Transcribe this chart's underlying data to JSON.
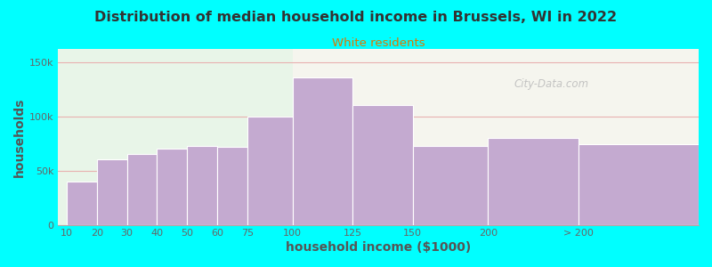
{
  "title": "Distribution of median household income in Brussels, WI in 2022",
  "subtitle": "White residents",
  "xlabel": "household income ($1000)",
  "ylabel": "households",
  "bar_labels": [
    "10",
    "20",
    "30",
    "40",
    "50",
    "60",
    "75",
    "100",
    "125",
    "150",
    "200",
    "> 200"
  ],
  "bar_values": [
    40000,
    60000,
    65000,
    70000,
    73000,
    72000,
    100000,
    136000,
    110000,
    73000,
    80000,
    74000
  ],
  "bar_widths": [
    1,
    1,
    1,
    1,
    1,
    1,
    1.5,
    2,
    2,
    2.5,
    3,
    4
  ],
  "bar_left_edges": [
    0,
    1,
    2,
    3,
    4,
    5,
    6,
    7.5,
    9.5,
    11.5,
    14,
    17
  ],
  "bar_color": "#c4aad0",
  "bar_edge_color": "#ffffff",
  "background_outer": "#00ffff",
  "background_plot_left": "#e8f5e8",
  "background_plot_right": "#f5f5ee",
  "title_color": "#333333",
  "subtitle_color": "#dd7700",
  "axis_label_color": "#555555",
  "tick_label_color": "#666666",
  "grid_color": "#e8b0b0",
  "ytick_labels": [
    "0",
    "50k",
    "100k",
    "150k"
  ],
  "ytick_values": [
    0,
    50000,
    100000,
    150000
  ],
  "ylim": [
    0,
    162000
  ],
  "xlim_left": -0.3,
  "xlim_right": 21,
  "bg_split_x": 7.5,
  "watermark": "City-Data.com",
  "tick_positions": [
    0,
    1,
    2,
    3,
    4,
    5,
    6,
    7.5,
    9.5,
    11.5,
    14,
    17
  ]
}
